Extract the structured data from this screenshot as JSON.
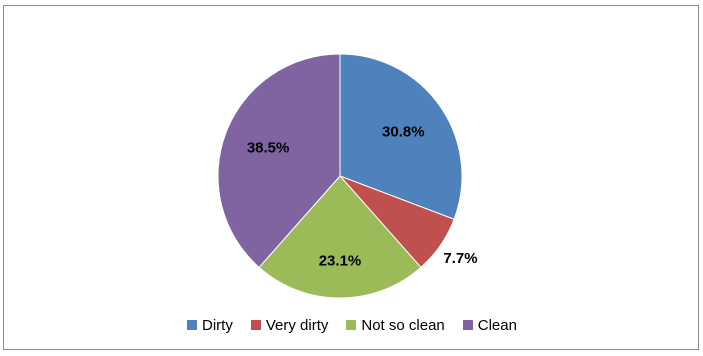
{
  "chart_data": {
    "type": "pie",
    "title": "",
    "legend_position": "bottom",
    "slices": [
      {
        "name": "Dirty",
        "value": 30.8,
        "label": "30.8%",
        "color": "#4F81BD"
      },
      {
        "name": "Very dirty",
        "value": 7.7,
        "label": "7.7%",
        "color": "#C0504D"
      },
      {
        "name": "Not so clean",
        "value": 23.1,
        "label": "23.1%",
        "color": "#9BBB59"
      },
      {
        "name": "Clean",
        "value": 38.5,
        "label": "38.5%",
        "color": "#8064A2"
      }
    ]
  }
}
